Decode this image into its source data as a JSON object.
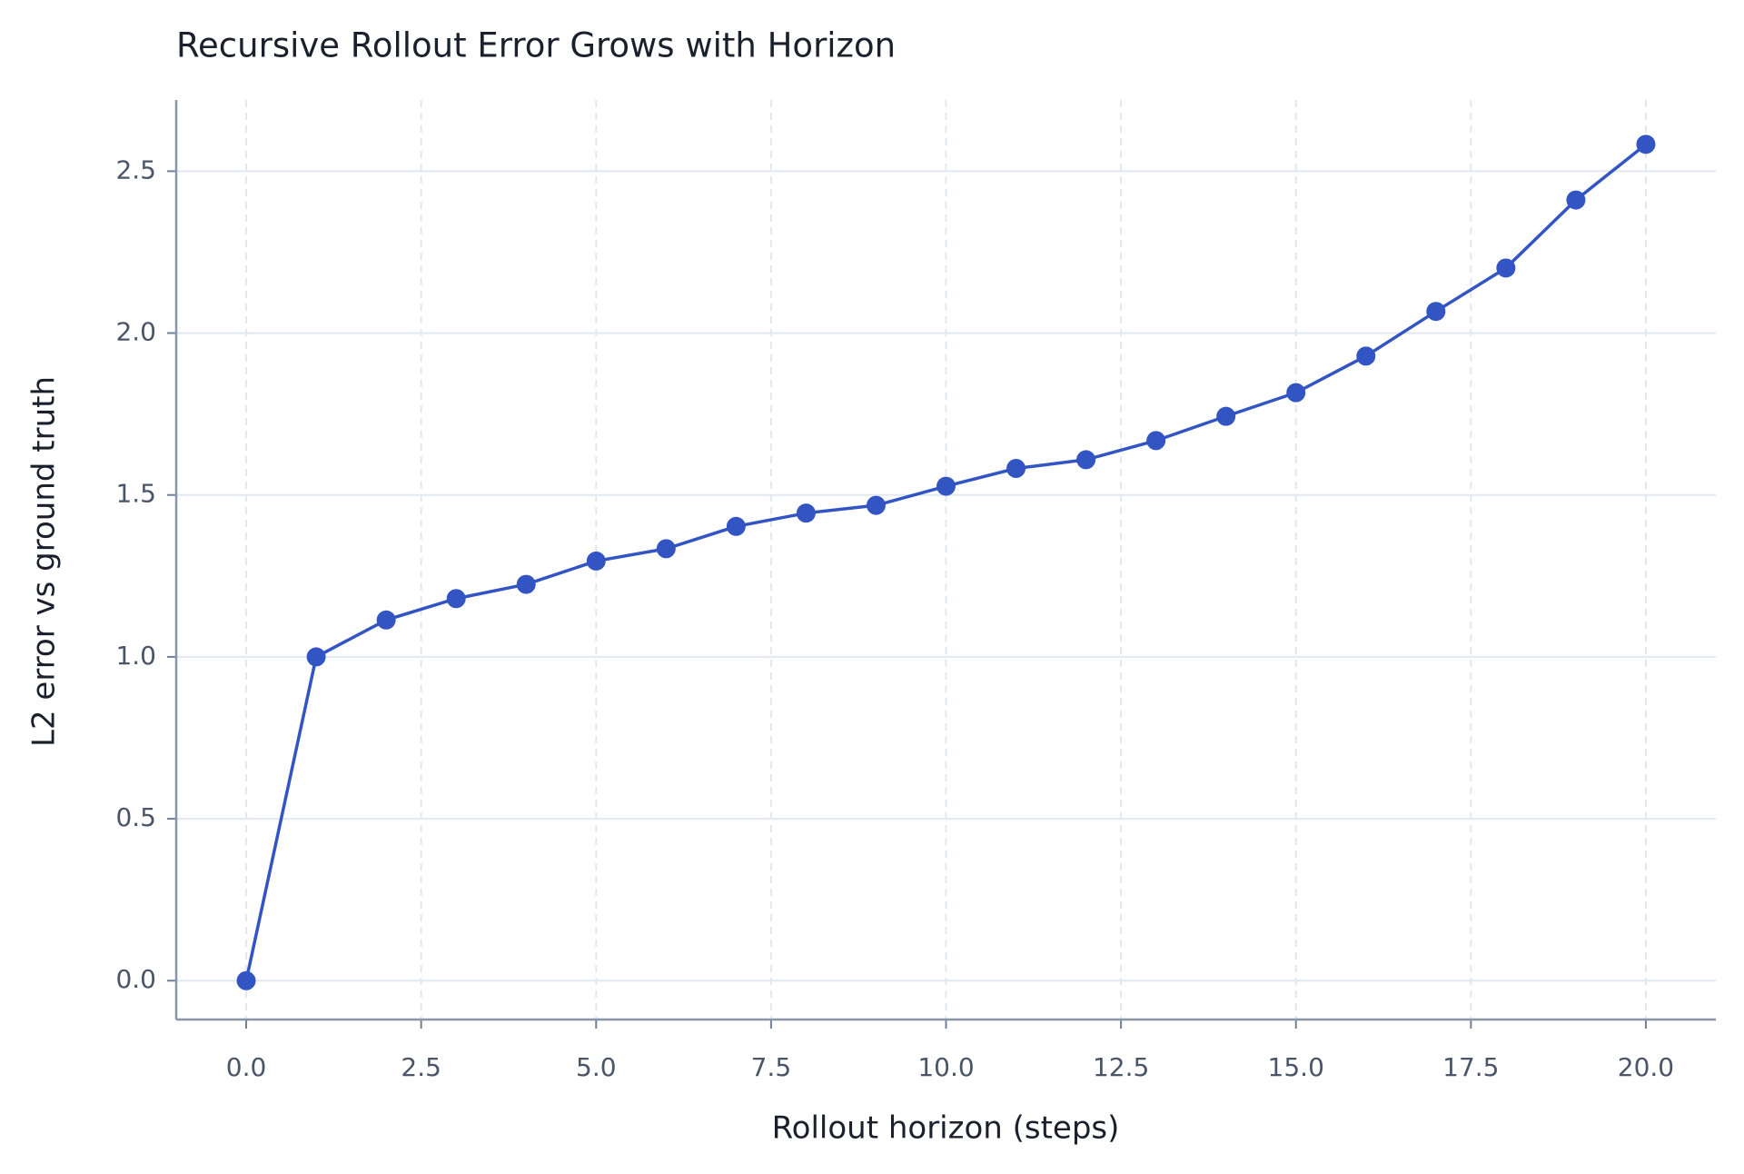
{
  "chart_data": {
    "type": "line",
    "title": "Recursive Rollout Error Grows with Horizon",
    "xlabel": "Rollout horizon (steps)",
    "ylabel": "L2 error vs ground truth",
    "x": [
      0,
      1,
      2,
      3,
      4,
      5,
      6,
      7,
      8,
      9,
      10,
      11,
      12,
      13,
      14,
      15,
      16,
      17,
      18,
      19,
      20
    ],
    "series": [
      {
        "color": "#3355c4",
        "values": [
          0,
          1.0,
          1.114,
          1.18,
          1.224,
          1.296,
          1.334,
          1.403,
          1.444,
          1.468,
          1.527,
          1.582,
          1.609,
          1.668,
          1.743,
          1.816,
          1.929,
          2.067,
          2.201,
          2.411,
          2.583
        ]
      }
    ],
    "xlim": [
      -1,
      21
    ],
    "ylim": [
      -0.12,
      2.72
    ],
    "xticks": [
      {
        "value": 0,
        "label": "0.0"
      },
      2.5,
      {
        "value": 5,
        "label": "5.0"
      },
      7.5,
      {
        "value": 10,
        "label": "10.0"
      },
      12.5,
      {
        "value": 15,
        "label": "15.0"
      },
      17.5,
      {
        "value": 20,
        "label": "20.0"
      }
    ],
    "yticks": [
      {
        "value": 0,
        "label": "0.0"
      },
      0.5,
      {
        "value": 1,
        "label": "1.0"
      },
      1.5,
      {
        "value": 2,
        "label": "2.0"
      },
      2.5
    ],
    "grid": true
  }
}
